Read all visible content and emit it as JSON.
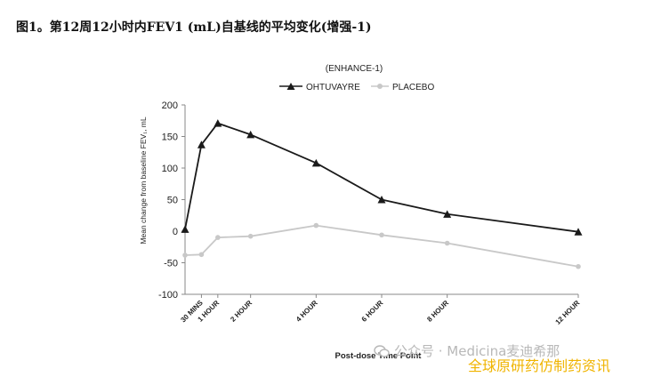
{
  "page_title": "图1。第12周12小时内FEV1 (mL)自基线的平均变化(增强-1)",
  "watermark": {
    "text": "公众号 · Medicina麦迪希那",
    "brand": "全球原研药仿制药资讯",
    "icon": "wechat-icon"
  },
  "chart_data": {
    "type": "line",
    "title": "(ENHANCE-1)",
    "xlabel": "Post-dose Time Point",
    "ylabel": "Mean change from baseline FEV₁, mL",
    "x_units": "hours",
    "xlim": [
      0,
      12
    ],
    "ylim": [
      -100,
      200
    ],
    "y_ticks": [
      -100,
      -50,
      0,
      50,
      100,
      150,
      200
    ],
    "x_ticks": [
      {
        "x": 0.5,
        "label": "30 MINS"
      },
      {
        "x": 1,
        "label": "1 HOUR"
      },
      {
        "x": 2,
        "label": "2 HOUR"
      },
      {
        "x": 4,
        "label": "4 HOUR"
      },
      {
        "x": 6,
        "label": "6 HOUR"
      },
      {
        "x": 8,
        "label": "8 HOUR"
      },
      {
        "x": 12,
        "label": "12 HOUR"
      }
    ],
    "legend_position": "top-center",
    "grid": false,
    "series": [
      {
        "name": "OHTUVAYRE",
        "color": "#1a1a1a",
        "marker": "triangle",
        "x": [
          0,
          0.5,
          1,
          2,
          4,
          6,
          8,
          12
        ],
        "y": [
          3,
          137,
          171,
          153,
          108,
          50,
          27,
          -1
        ]
      },
      {
        "name": "PLACEBO",
        "color": "#c8c8c8",
        "marker": "circle",
        "x": [
          0,
          0.5,
          1,
          2,
          4,
          6,
          8,
          12
        ],
        "y": [
          -38,
          -37,
          -10,
          -8,
          9,
          -6,
          -19,
          -56
        ]
      }
    ]
  }
}
